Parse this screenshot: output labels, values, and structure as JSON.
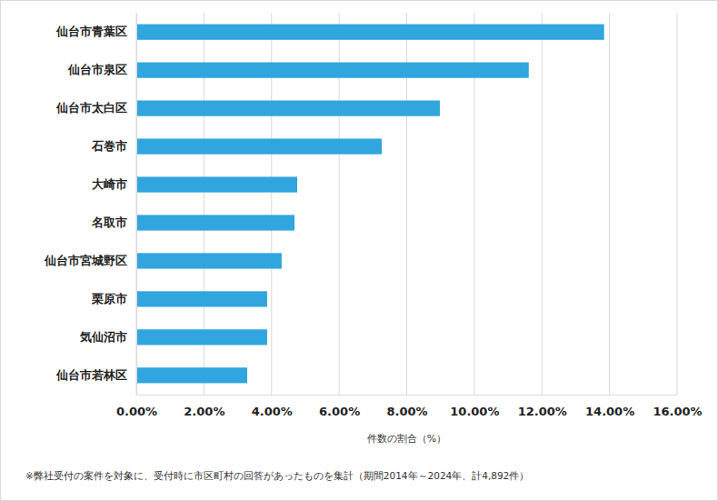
{
  "chart_data": {
    "type": "bar",
    "orientation": "horizontal",
    "categories": [
      "仙台市青葉区",
      "仙台市泉区",
      "仙台市太白区",
      "石巻市",
      "大崎市",
      "名取市",
      "仙台市宮城野区",
      "栗原市",
      "気仙沼市",
      "仙台市若林区"
    ],
    "values": [
      13.84,
      11.61,
      8.98,
      7.26,
      4.76,
      4.68,
      4.3,
      3.87,
      3.87,
      3.28
    ],
    "color": "#30a5de",
    "xlabel": "件数の割合（%）",
    "xlim": [
      0,
      16
    ],
    "xticks": [
      {
        "value": 0,
        "label": "0.00%"
      },
      {
        "value": 2,
        "label": "2.00%"
      },
      {
        "value": 4,
        "label": "4.00%"
      },
      {
        "value": 6,
        "label": "6.00%"
      },
      {
        "value": 8,
        "label": "8.00%"
      },
      {
        "value": 10,
        "label": "10.00%"
      },
      {
        "value": 12,
        "label": "12.00%"
      },
      {
        "value": 14,
        "label": "14.00%"
      },
      {
        "value": 16,
        "label": "16.00%"
      }
    ],
    "grid": true,
    "annotations": [
      "※弊社受付の案件を対象に、受付時に市区町村の回答があったものを集計（期間2014年～2024年、計4,892件）"
    ]
  }
}
